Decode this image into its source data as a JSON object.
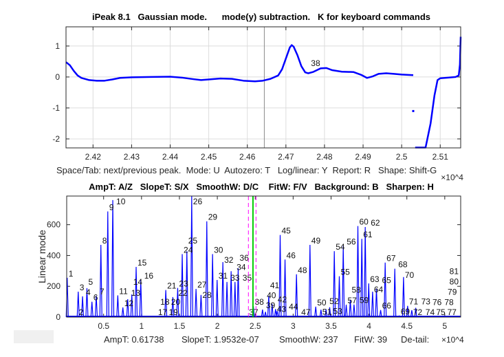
{
  "window": {
    "detail_field_value": ""
  },
  "top_panel": {
    "title": "iPeak 8.1   Gaussian mode.      mode(y) subtraction.   K for keyboard commands",
    "help_line": "Space/Tab: next/previous peak.  Mode: U  Autozero: T   Log/linear: Y  Report: R   Shape: Shift-G",
    "x_exponent": "×10^4"
  },
  "bottom_panel": {
    "title": "AmpT: A/Z   SlopeT: S/X   SmoothW: D/C    FitW: F/V   Background: B   Sharpen: H",
    "status": {
      "ampt": "AmpT: 0.61738",
      "slopet": "SlopeT: 1.9532e-07",
      "smoothw": "SmoothW: 237",
      "fitw": "FitW: 39",
      "detail": "De-tail:"
    },
    "x_exponent": "×10^4"
  },
  "colors": {
    "signal": "#0000ff",
    "cursor": "#00cc00",
    "window_marker": "#ff00ff",
    "grid": "#dcdcdc"
  },
  "chart_data": [
    {
      "type": "scatter",
      "title": "iPeak 8.1   Gaussian mode.      mode(y) subtraction.   K for keyboard commands",
      "xlabel": "",
      "ylabel": "",
      "x_multiplier": "×10^4",
      "xlim": [
        2.413,
        2.5153
      ],
      "ylim": [
        -2.29,
        1.62
      ],
      "xticks": [
        "2.42",
        "2.43",
        "2.44",
        "2.45",
        "2.46",
        "2.47",
        "2.48",
        "2.49",
        "2.5",
        "2.51"
      ],
      "yticks": [
        "-2",
        "-1",
        "0",
        "1"
      ],
      "grid": true,
      "cursor_x": 2.4644,
      "annotations": [
        {
          "text": "38",
          "x": 2.4765,
          "y": 0.26
        }
      ],
      "segments": [
        [
          [
            2.413,
            0.48
          ],
          [
            2.414,
            0.38
          ],
          [
            2.415,
            0.2
          ],
          [
            2.416,
            0.05
          ],
          [
            2.417,
            -0.03
          ],
          [
            2.419,
            -0.1
          ],
          [
            2.421,
            -0.12
          ],
          [
            2.423,
            -0.12
          ],
          [
            2.425,
            -0.08
          ],
          [
            2.427,
            -0.03
          ],
          [
            2.43,
            -0.01
          ],
          [
            2.435,
            0.0
          ],
          [
            2.44,
            0.01
          ],
          [
            2.443,
            -0.02
          ],
          [
            2.446,
            -0.07
          ],
          [
            2.448,
            -0.1
          ],
          [
            2.45,
            -0.08
          ],
          [
            2.453,
            -0.05
          ],
          [
            2.456,
            -0.06
          ],
          [
            2.459,
            -0.12
          ],
          [
            2.462,
            -0.14
          ],
          [
            2.464,
            -0.12
          ],
          [
            2.466,
            -0.06
          ],
          [
            2.468,
            0.05
          ],
          [
            2.469,
            0.25
          ],
          [
            2.47,
            0.6
          ],
          [
            2.471,
            0.95
          ],
          [
            2.4715,
            1.03
          ],
          [
            2.472,
            0.98
          ],
          [
            2.473,
            0.7
          ],
          [
            2.474,
            0.35
          ],
          [
            2.475,
            0.15
          ],
          [
            2.4758,
            0.12
          ],
          [
            2.477,
            0.16
          ],
          [
            2.479,
            0.28
          ],
          [
            2.4805,
            0.29
          ],
          [
            2.482,
            0.22
          ],
          [
            2.4845,
            0.17
          ],
          [
            2.4875,
            0.16
          ],
          [
            2.4895,
            0.07
          ],
          [
            2.491,
            -0.03
          ],
          [
            2.4925,
            0.02
          ],
          [
            2.494,
            0.1
          ],
          [
            2.496,
            0.12
          ],
          [
            2.498,
            0.1
          ],
          [
            2.5,
            0.08
          ],
          [
            2.503,
            0.06
          ]
        ],
        [
          [
            2.503,
            -1.1
          ]
        ],
        [
          [
            2.5035,
            -2.28
          ],
          [
            2.5062,
            -2.28
          ],
          [
            2.5075,
            -1.5
          ],
          [
            2.5085,
            -0.6
          ],
          [
            2.5093,
            -0.1
          ],
          [
            2.51,
            -0.04
          ],
          [
            2.512,
            -0.02
          ],
          [
            2.514,
            0.0
          ],
          [
            2.5148,
            0.05
          ],
          [
            2.5151,
            0.4
          ],
          [
            2.5153,
            1.3
          ]
        ]
      ]
    },
    {
      "type": "bar",
      "title": "AmpT: A/Z   SlopeT: S/X   SmoothW: D/C    FitW: F/V   Background: B   Sharpen: H",
      "xlabel": "",
      "ylabel": "Linear mode",
      "x_multiplier": "×10^4",
      "xlim": [
        0.013,
        5.21
      ],
      "ylim": [
        0,
        786
      ],
      "xticks": [
        "0.5",
        "1",
        "1.5",
        "2",
        "2.5",
        "3",
        "3.5",
        "4",
        "4.5",
        "5"
      ],
      "yticks": [
        "0",
        "200",
        "400",
        "600"
      ],
      "grid": false,
      "cursor_x": 2.47,
      "window_markers": [
        2.41,
        2.51
      ],
      "peaks": [
        {
          "label": "1",
          "x": 0.02,
          "y": 255
        },
        {
          "label": "2",
          "x": 0.155,
          "y": 3
        },
        {
          "label": "3",
          "x": 0.165,
          "y": 165
        },
        {
          "label": "4",
          "x": 0.222,
          "y": 135
        },
        {
          "label": "5",
          "x": 0.28,
          "y": 188
        },
        {
          "label": "6",
          "x": 0.346,
          "y": 100
        },
        {
          "label": "7",
          "x": 0.403,
          "y": 138
        },
        {
          "label": "8",
          "x": 0.464,
          "y": 469
        },
        {
          "label": "9",
          "x": 0.555,
          "y": 686
        },
        {
          "label": "10",
          "x": 0.621,
          "y": 760
        },
        {
          "label": "11",
          "x": 0.687,
          "y": 141
        },
        {
          "label": "12",
          "x": 0.754,
          "y": 63
        },
        {
          "label": "13",
          "x": 0.818,
          "y": 116
        },
        {
          "label": "14",
          "x": 0.872,
          "y": 147
        },
        {
          "label": "15",
          "x": 0.929,
          "y": 326
        },
        {
          "label": "16",
          "x": 0.99,
          "y": 242
        },
        {
          "label": "17",
          "x": 1.2,
          "y": 4
        },
        {
          "label": "18",
          "x": 1.23,
          "y": 4
        },
        {
          "label": "19",
          "x": 1.26,
          "y": 4
        },
        {
          "label": "20",
          "x": 1.29,
          "y": 4
        },
        {
          "label": "21",
          "x": 1.32,
          "y": 176
        },
        {
          "label": "22",
          "x": 1.413,
          "y": 130
        },
        {
          "label": "23",
          "x": 1.477,
          "y": 189
        },
        {
          "label": "24",
          "x": 1.537,
          "y": 409
        },
        {
          "label": "25",
          "x": 1.598,
          "y": 428
        },
        {
          "label": "26",
          "x": 1.662,
          "y": 786
        },
        {
          "label": "27",
          "x": 1.719,
          "y": 183
        },
        {
          "label": "28",
          "x": 1.785,
          "y": 144
        },
        {
          "label": "29",
          "x": 1.861,
          "y": 622
        },
        {
          "label": "30",
          "x": 1.937,
          "y": 409
        },
        {
          "label": "31",
          "x": 1.997,
          "y": 241
        },
        {
          "label": "32",
          "x": 2.073,
          "y": 357
        },
        {
          "label": "33",
          "x": 2.127,
          "y": 228
        },
        {
          "label": "34",
          "x": 2.182,
          "y": 298
        },
        {
          "label": "35",
          "x": 2.233,
          "y": 228
        },
        {
          "label": "36",
          "x": 2.275,
          "y": 317
        },
        {
          "label": "37",
          "x": 2.4,
          "y": 3
        },
        {
          "label": "38",
          "x": 2.475,
          "y": 71
        },
        {
          "label": "39",
          "x": 2.596,
          "y": 49
        },
        {
          "label": "40",
          "x": 2.635,
          "y": 34
        },
        {
          "label": "41",
          "x": 2.678,
          "y": 138
        },
        {
          "label": "42",
          "x": 2.723,
          "y": 86
        },
        {
          "label": "43",
          "x": 2.768,
          "y": 52
        },
        {
          "label": "44",
          "x": 2.79,
          "y": 40
        },
        {
          "label": "45",
          "x": 2.829,
          "y": 533
        },
        {
          "label": "46",
          "x": 2.893,
          "y": 374
        },
        {
          "label": "47",
          "x": 2.98,
          "y": 5
        },
        {
          "label": "48",
          "x": 3.044,
          "y": 278
        },
        {
          "label": "49",
          "x": 3.222,
          "y": 469
        },
        {
          "label": "50",
          "x": 3.298,
          "y": 68
        },
        {
          "label": "51",
          "x": 3.367,
          "y": 48
        },
        {
          "label": "52",
          "x": 3.434,
          "y": 50
        },
        {
          "label": "53",
          "x": 3.482,
          "y": 64
        },
        {
          "label": "54",
          "x": 3.543,
          "y": 428
        },
        {
          "label": "55",
          "x": 3.609,
          "y": 265
        },
        {
          "label": "56",
          "x": 3.661,
          "y": 463
        },
        {
          "label": "57",
          "x": 3.7,
          "y": 81
        },
        {
          "label": "58",
          "x": 3.754,
          "y": 109
        },
        {
          "label": "59",
          "x": 3.803,
          "y": 82
        },
        {
          "label": "60",
          "x": 3.854,
          "y": 591
        },
        {
          "label": "61",
          "x": 3.906,
          "y": 508
        },
        {
          "label": "62",
          "x": 3.951,
          "y": 585
        },
        {
          "label": "63",
          "x": 3.997,
          "y": 219
        },
        {
          "label": "64",
          "x": 4.048,
          "y": 165
        },
        {
          "label": "65",
          "x": 4.099,
          "y": 186
        },
        {
          "label": "66",
          "x": 4.154,
          "y": 46
        },
        {
          "label": "67",
          "x": 4.214,
          "y": 354
        },
        {
          "label": "68",
          "x": 4.341,
          "y": 314
        },
        {
          "label": "69",
          "x": 4.4,
          "y": 8
        },
        {
          "label": "70",
          "x": 4.456,
          "y": 260
        },
        {
          "label": "71",
          "x": 4.51,
          "y": 73
        },
        {
          "label": "72",
          "x": 4.565,
          "y": 45
        },
        {
          "label": "73",
          "x": 4.617,
          "y": 60
        },
        {
          "label": "74",
          "x": 4.7,
          "y": 3
        },
        {
          "label": "75",
          "x": 4.76,
          "y": 3
        },
        {
          "label": "76",
          "x": 4.82,
          "y": 3
        },
        {
          "label": "77",
          "x": 4.88,
          "y": 3
        },
        {
          "label": "78",
          "x": 4.95,
          "y": 3
        },
        {
          "label": "79",
          "x": 5.02,
          "y": 3
        },
        {
          "label": "80",
          "x": 5.09,
          "y": 3
        },
        {
          "label": "81",
          "x": 5.16,
          "y": 3
        }
      ]
    }
  ]
}
